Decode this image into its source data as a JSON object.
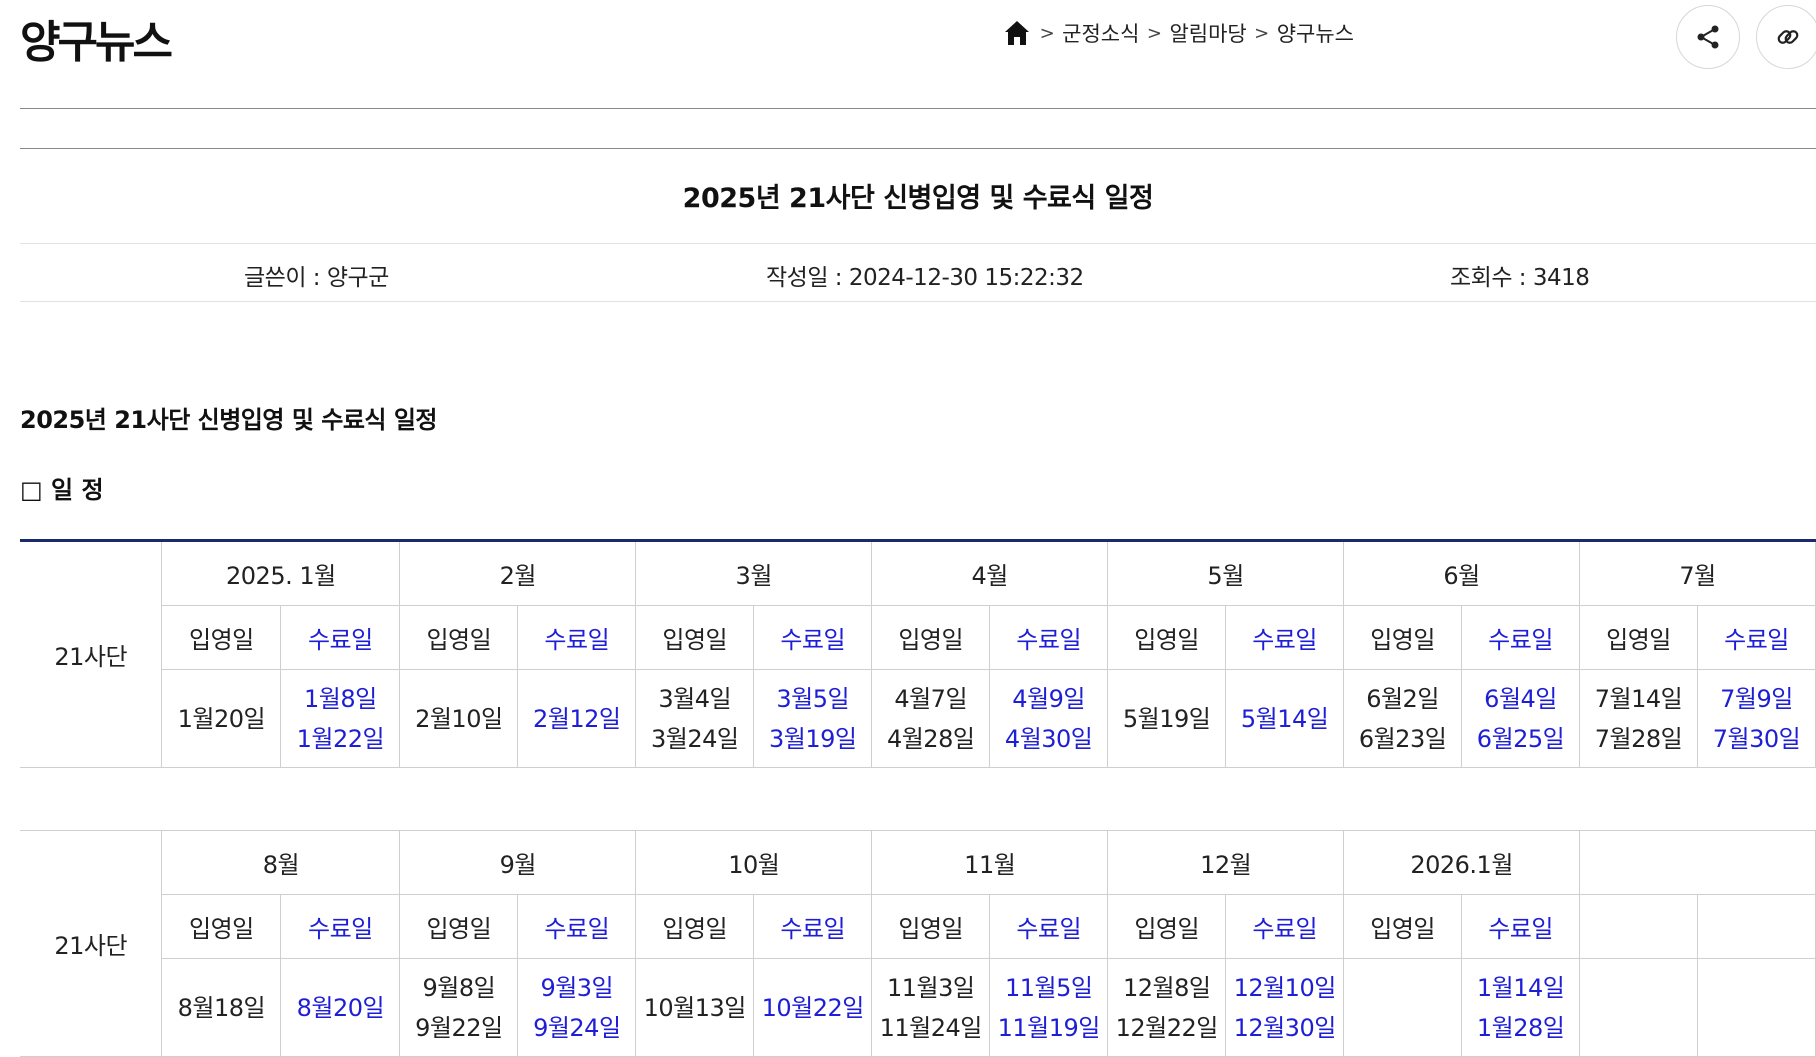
{
  "header": {
    "site_title": "양구뉴스",
    "breadcrumb": [
      "군정소식",
      "알림마당",
      "양구뉴스"
    ],
    "icons": {
      "home": "home-icon",
      "share": "share-icon",
      "link": "link-icon"
    }
  },
  "post": {
    "title": "2025년 21사단 신병입영 및 수료식 일정",
    "author": "글쓴이 : 양구군",
    "date": "작성일 : 2024-12-30 15:22:32",
    "views": "조회수 : 3418"
  },
  "content": {
    "heading": "2025년 21사단 신병입영 및 수료식 일정",
    "section_label": "□ 일 정",
    "enter_label": "입영일",
    "finish_label": "수료일",
    "unit": "21사단",
    "colors": {
      "finish": "#1e1ed6",
      "table_top_border": "#1b2a6b"
    },
    "table1": {
      "months": [
        {
          "month": "2025. 1월",
          "enter": [
            "1월20일"
          ],
          "finish": [
            "1월8일",
            "1월22일"
          ]
        },
        {
          "month": "2월",
          "enter": [
            "2월10일"
          ],
          "finish": [
            "2월12일"
          ]
        },
        {
          "month": "3월",
          "enter": [
            "3월4일",
            "3월24일"
          ],
          "finish": [
            "3월5일",
            "3월19일"
          ]
        },
        {
          "month": "4월",
          "enter": [
            "4월7일",
            "4월28일"
          ],
          "finish": [
            "4월9일",
            "4월30일"
          ]
        },
        {
          "month": "5월",
          "enter": [
            "5월19일"
          ],
          "finish": [
            "5월14일"
          ]
        },
        {
          "month": "6월",
          "enter": [
            "6월2일",
            "6월23일"
          ],
          "finish": [
            "6월4일",
            "6월25일"
          ]
        },
        {
          "month": "7월",
          "enter": [
            "7월14일",
            "7월28일"
          ],
          "finish": [
            "7월9일",
            "7월30일"
          ]
        }
      ]
    },
    "table2": {
      "months": [
        {
          "month": "8월",
          "enter": [
            "8월18일"
          ],
          "finish": [
            "8월20일"
          ]
        },
        {
          "month": "9월",
          "enter": [
            "9월8일",
            "9월22일"
          ],
          "finish": [
            "9월3일",
            "9월24일"
          ]
        },
        {
          "month": "10월",
          "enter": [
            "10월13일"
          ],
          "finish": [
            "10월22일"
          ]
        },
        {
          "month": "11월",
          "enter": [
            "11월3일",
            "11월24일"
          ],
          "finish": [
            "11월5일",
            "11월19일"
          ]
        },
        {
          "month": "12월",
          "enter": [
            "12월8일",
            "12월22일"
          ],
          "finish": [
            "12월10일",
            "12월30일"
          ]
        },
        {
          "month": "2026.1월",
          "enter": [],
          "finish": [
            "1월14일",
            "1월28일"
          ]
        }
      ]
    }
  }
}
